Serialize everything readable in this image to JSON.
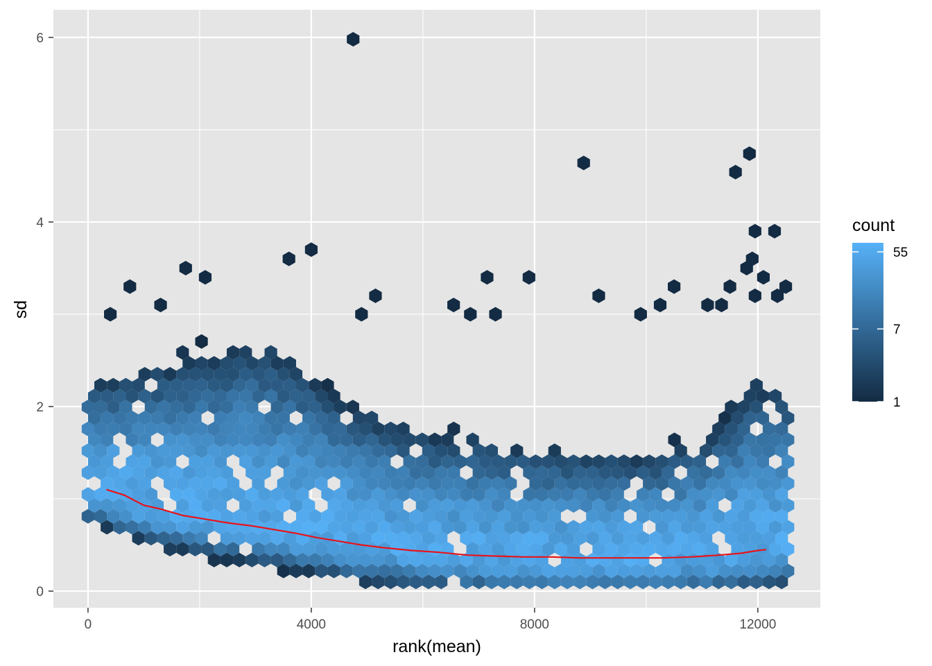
{
  "chart_data": {
    "type": "hexbin",
    "xlabel": "rank(mean)",
    "ylabel": "sd",
    "xlim": [
      -620,
      13120
    ],
    "ylim": [
      -0.18,
      6.3
    ],
    "x_ticks": [
      0,
      4000,
      8000,
      12000
    ],
    "x_tick_labels": [
      "0",
      "4000",
      "8000",
      "12000"
    ],
    "y_ticks": [
      0,
      2,
      4,
      6
    ],
    "y_tick_labels": [
      "0",
      "2",
      "4",
      "6"
    ],
    "grid": true,
    "panel_background": "#e5e5e5",
    "grid_color": "#ffffff",
    "legend": {
      "title": "count",
      "position": "right",
      "scale": "log",
      "min": 1,
      "max": 70,
      "labels": [
        {
          "label": "55",
          "value": 55
        },
        {
          "label": "7",
          "value": 7
        },
        {
          "label": "1",
          "value": 1
        }
      ],
      "color_low": "#132b43",
      "color_high": "#56b1f7"
    },
    "hexbin_density": {
      "x_range": [
        0,
        12600
      ],
      "trend_sd": [
        [
          0,
          1.15
        ],
        [
          1000,
          0.93
        ],
        [
          2000,
          0.79
        ],
        [
          3000,
          0.7
        ],
        [
          4000,
          0.6
        ],
        [
          5000,
          0.5
        ],
        [
          6000,
          0.43
        ],
        [
          7000,
          0.39
        ],
        [
          8000,
          0.36
        ],
        [
          9000,
          0.36
        ],
        [
          10000,
          0.35
        ],
        [
          11000,
          0.37
        ],
        [
          12000,
          0.45
        ],
        [
          12600,
          0.5
        ]
      ],
      "spread_sd": [
        [
          0,
          2.2
        ],
        [
          2000,
          2.5
        ],
        [
          3000,
          2.7
        ],
        [
          4000,
          2.3
        ],
        [
          5000,
          1.9
        ],
        [
          6000,
          1.7
        ],
        [
          7000,
          1.6
        ],
        [
          8000,
          1.5
        ],
        [
          9000,
          1.45
        ],
        [
          10000,
          1.45
        ],
        [
          11000,
          1.6
        ],
        [
          12000,
          2.2
        ],
        [
          12600,
          2.1
        ]
      ],
      "peak_count": 58
    },
    "outliers": [
      {
        "x": 4750,
        "y": 5.98
      },
      {
        "x": 8880,
        "y": 4.64
      },
      {
        "x": 11850,
        "y": 4.74
      },
      {
        "x": 11600,
        "y": 4.54
      },
      {
        "x": 4000,
        "y": 3.7
      },
      {
        "x": 3600,
        "y": 3.6
      },
      {
        "x": 11950,
        "y": 3.9
      },
      {
        "x": 12300,
        "y": 3.9
      },
      {
        "x": 11900,
        "y": 3.6
      },
      {
        "x": 1750,
        "y": 3.5
      },
      {
        "x": 2100,
        "y": 3.4
      },
      {
        "x": 7150,
        "y": 3.4
      },
      {
        "x": 7900,
        "y": 3.4
      },
      {
        "x": 12100,
        "y": 3.4
      },
      {
        "x": 11800,
        "y": 3.5
      },
      {
        "x": 750,
        "y": 3.3
      },
      {
        "x": 10500,
        "y": 3.3
      },
      {
        "x": 11500,
        "y": 3.3
      },
      {
        "x": 12500,
        "y": 3.3
      },
      {
        "x": 5150,
        "y": 3.2
      },
      {
        "x": 9150,
        "y": 3.2
      },
      {
        "x": 11950,
        "y": 3.2
      },
      {
        "x": 12350,
        "y": 3.2
      },
      {
        "x": 4900,
        "y": 3.0
      },
      {
        "x": 7300,
        "y": 3.0
      },
      {
        "x": 9900,
        "y": 3.0
      },
      {
        "x": 400,
        "y": 3.0
      },
      {
        "x": 6550,
        "y": 3.1
      },
      {
        "x": 6850,
        "y": 3.0
      },
      {
        "x": 10250,
        "y": 3.1
      },
      {
        "x": 11100,
        "y": 3.1
      },
      {
        "x": 11350,
        "y": 3.1
      },
      {
        "x": 1300,
        "y": 3.1
      }
    ],
    "trend_line": {
      "color": "#e8131a",
      "x": [
        330,
        650,
        1000,
        1300,
        1700,
        2100,
        2500,
        2900,
        3300,
        3700,
        4100,
        4500,
        4900,
        5300,
        5800,
        6300,
        6800,
        7300,
        7800,
        8300,
        8800,
        9300,
        9800,
        10300,
        10800,
        11300,
        11700,
        12000,
        12150
      ],
      "y": [
        1.1,
        1.04,
        0.93,
        0.89,
        0.82,
        0.78,
        0.74,
        0.71,
        0.67,
        0.63,
        0.58,
        0.54,
        0.5,
        0.47,
        0.44,
        0.42,
        0.39,
        0.38,
        0.37,
        0.37,
        0.36,
        0.36,
        0.36,
        0.36,
        0.37,
        0.39,
        0.41,
        0.44,
        0.45
      ]
    }
  }
}
